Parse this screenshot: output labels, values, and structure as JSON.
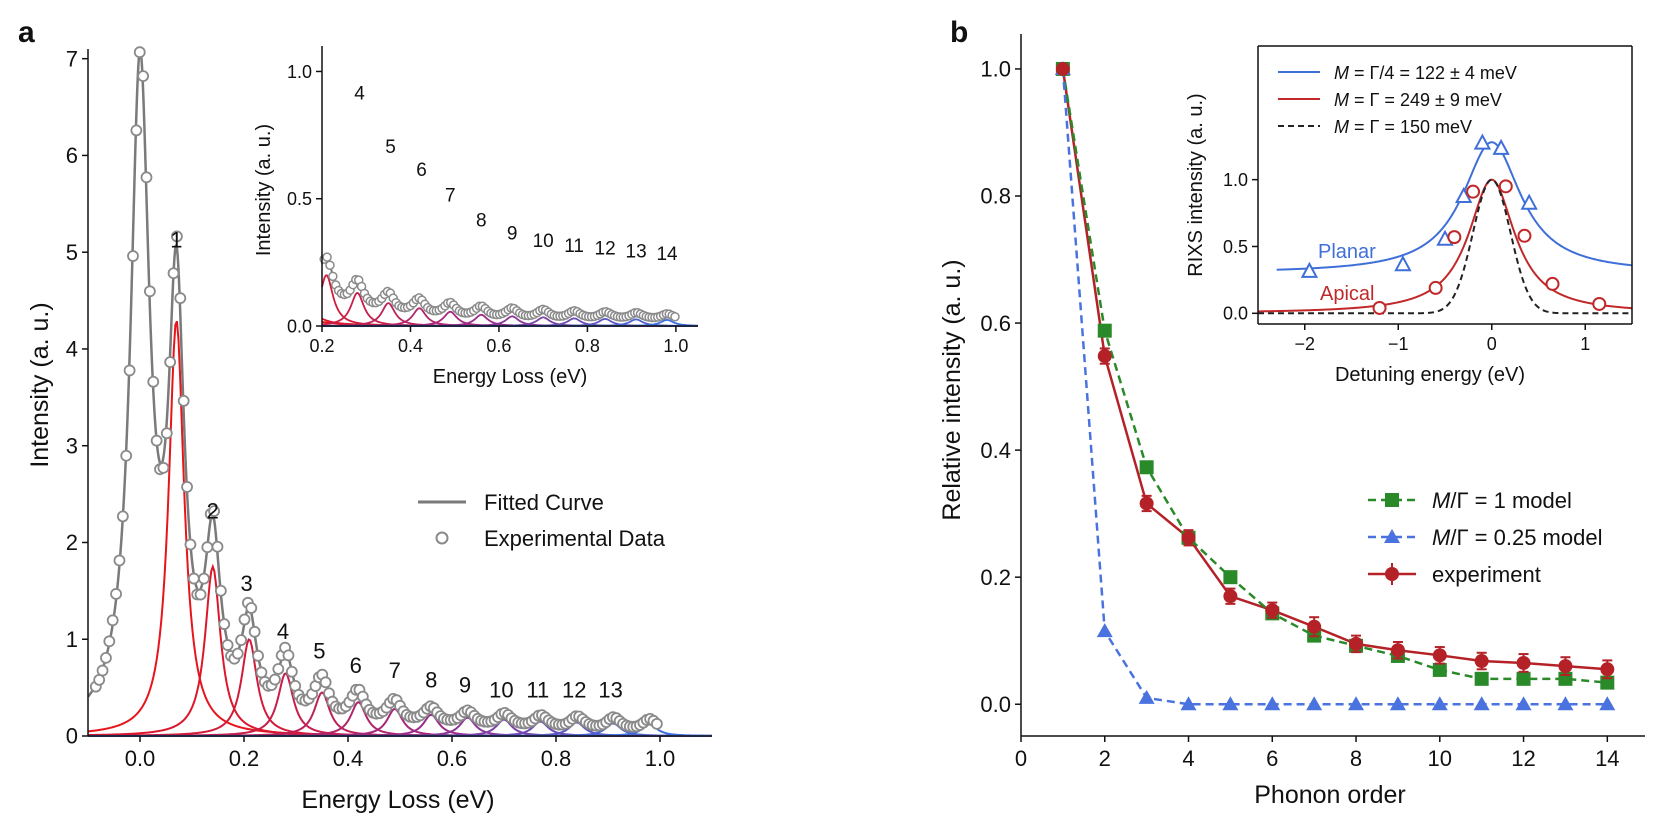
{
  "colors": {
    "red": "#e8141b",
    "gray": "#7a7a7a",
    "green": "#2a8a2a",
    "blue": "#4a73e0",
    "darkred": "#b42228",
    "planar": "#3f6fd8",
    "apical": "#c0282a",
    "black": "#222222"
  },
  "panel_a": {
    "label": "a",
    "legend": {
      "fitted": "Fitted Curve",
      "experimental": "Experimental Data"
    },
    "inset": {
      "ylabel": "Intensity (a. u.)",
      "xlabel": "Energy Loss (eV)"
    }
  },
  "panel_b": {
    "label": "b",
    "legend": {
      "green": {
        "italic": "M",
        "rest": "/Γ = 1 model"
      },
      "blue": {
        "italic": "M",
        "rest": "/Γ = 0.25 model"
      },
      "exp": "experiment"
    },
    "inset": {
      "ylabel": "RIXS intensity (a. u.)",
      "xlabel": "Detuning energy (eV)",
      "legend": [
        {
          "italic": "M",
          "rest": " = Γ/4 = 122 ± 4 meV"
        },
        {
          "italic": "M",
          "rest": " = Γ = 249 ± 9 meV"
        },
        {
          "italic": "M",
          "rest": " = Γ = 150 meV"
        }
      ],
      "planar_label": "Planar",
      "apical_label": "Apical"
    }
  },
  "chart_data": [
    {
      "id": "panel-a-main",
      "type": "line",
      "title": "",
      "xlabel": "Energy Loss (eV)",
      "ylabel": "Intensity (a. u.)",
      "xlim": [
        -0.1,
        1.1
      ],
      "ylim": [
        0,
        7.1
      ],
      "xticks": [
        0.0,
        0.2,
        0.4,
        0.6,
        0.8,
        1.0
      ],
      "xtick_labels": [
        "0.0",
        "0.2",
        "0.4",
        "0.6",
        "0.8",
        "1.0"
      ],
      "yticks": [
        0,
        1,
        2,
        3,
        4,
        5,
        6,
        7
      ],
      "ytick_labels": [
        "0",
        "1",
        "2",
        "3",
        "4",
        "5",
        "6",
        "7"
      ],
      "elastic_peak": {
        "center": 0.0,
        "height": 6.75,
        "width": 0.022
      },
      "phonon_peaks": {
        "centers": [
          0.07,
          0.14,
          0.21,
          0.28,
          0.35,
          0.42,
          0.49,
          0.56,
          0.63,
          0.7,
          0.77,
          0.84,
          0.91,
          0.98
        ],
        "heights": [
          4.3,
          1.75,
          1.0,
          0.65,
          0.45,
          0.35,
          0.28,
          0.22,
          0.19,
          0.17,
          0.15,
          0.14,
          0.13,
          0.12
        ],
        "width": 0.018
      },
      "peak_labels": [
        "1",
        "2",
        "3",
        "4",
        "5",
        "6",
        "7",
        "8",
        "9",
        "10",
        "11",
        "12",
        "13"
      ],
      "peak_label_x": [
        0.07,
        0.14,
        0.205,
        0.275,
        0.345,
        0.415,
        0.49,
        0.56,
        0.625,
        0.695,
        0.765,
        0.835,
        0.905
      ],
      "peak_label_y": [
        5.05,
        2.25,
        1.5,
        1.0,
        0.8,
        0.65,
        0.6,
        0.5,
        0.45,
        0.4,
        0.4,
        0.4,
        0.4
      ],
      "legend": [
        "Fitted Curve",
        "Experimental Data"
      ]
    },
    {
      "id": "panel-a-inset",
      "type": "line",
      "xlabel": "Energy Loss (eV)",
      "ylabel": "Intensity (a. u.)",
      "xlim": [
        0.2,
        1.05
      ],
      "ylim": [
        0,
        1.1
      ],
      "xticks": [
        0.2,
        0.4,
        0.6,
        0.8,
        1.0
      ],
      "xtick_labels": [
        "0.2",
        "0.4",
        "0.6",
        "0.8",
        "1.0"
      ],
      "yticks": [
        0.0,
        0.5,
        1.0
      ],
      "ytick_labels": [
        "0.0",
        "0.5",
        "1.0"
      ],
      "peak_labels": [
        "4",
        "5",
        "6",
        "7",
        "8",
        "9",
        "10",
        "11",
        "12",
        "13",
        "14"
      ],
      "peak_label_x": [
        0.285,
        0.355,
        0.425,
        0.49,
        0.56,
        0.63,
        0.7,
        0.77,
        0.84,
        0.91,
        0.98
      ],
      "peak_label_y": [
        0.89,
        0.68,
        0.59,
        0.49,
        0.39,
        0.34,
        0.31,
        0.29,
        0.28,
        0.27,
        0.26
      ]
    },
    {
      "id": "panel-b-main",
      "type": "line",
      "xlabel": "Phonon order",
      "ylabel": "Relative intensity (a. u.)",
      "xlim": [
        0,
        14.9
      ],
      "ylim": [
        -0.05,
        1.055
      ],
      "xticks": [
        0,
        2,
        4,
        6,
        8,
        10,
        12,
        14
      ],
      "xtick_labels": [
        "0",
        "2",
        "4",
        "6",
        "8",
        "10",
        "12",
        "14"
      ],
      "yticks": [
        0.0,
        0.2,
        0.4,
        0.6,
        0.8,
        1.0
      ],
      "ytick_labels": [
        "0.0",
        "0.2",
        "0.4",
        "0.6",
        "0.8",
        "1.0"
      ],
      "x": [
        1,
        2,
        3,
        4,
        5,
        6,
        7,
        8,
        9,
        10,
        11,
        12,
        13,
        14
      ],
      "series": [
        {
          "name": "M/Γ = 1 model",
          "values": [
            1.0,
            0.588,
            0.373,
            0.262,
            0.2,
            0.143,
            0.108,
            0.092,
            0.076,
            0.054,
            0.04,
            0.04,
            0.04,
            0.034
          ]
        },
        {
          "name": "M/Γ = 0.25 model",
          "values": [
            1.0,
            0.115,
            0.01,
            0.0,
            0.0,
            0.0,
            0.0,
            0.0,
            0.0,
            0.0,
            0.0,
            0.0,
            0.0,
            0.0
          ]
        },
        {
          "name": "experiment",
          "values": [
            1.0,
            0.548,
            0.316,
            0.262,
            0.17,
            0.148,
            0.122,
            0.095,
            0.085,
            0.077,
            0.068,
            0.065,
            0.06,
            0.055
          ],
          "errors": [
            0.0,
            0.012,
            0.012,
            0.012,
            0.012,
            0.012,
            0.015,
            0.013,
            0.013,
            0.013,
            0.013,
            0.014,
            0.014,
            0.014
          ]
        }
      ]
    },
    {
      "id": "panel-b-inset",
      "type": "line",
      "xlabel": "Detuning energy (eV)",
      "ylabel": "RIXS intensity (a. u.)",
      "xlim": [
        -2.5,
        1.5
      ],
      "ylim": [
        -0.08,
        2.0
      ],
      "xticks": [
        -2,
        -1,
        0,
        1
      ],
      "xtick_labels": [
        "−2",
        "−1",
        "0",
        "1"
      ],
      "yticks": [
        0.0,
        0.5,
        1.0
      ],
      "ytick_labels": [
        "0.0",
        "0.5",
        "1.0"
      ],
      "planar_points": {
        "x": [
          -1.95,
          -0.95,
          -0.5,
          -0.3,
          -0.1,
          0.1,
          0.4
        ],
        "y": [
          0.31,
          0.36,
          0.55,
          0.87,
          1.27,
          1.23,
          0.82
        ]
      },
      "apical_points": {
        "x": [
          -1.2,
          -0.6,
          -0.4,
          -0.2,
          0.15,
          0.35,
          0.65,
          1.15
        ],
        "y": [
          0.04,
          0.19,
          0.57,
          0.91,
          0.95,
          0.58,
          0.22,
          0.07
        ]
      },
      "planar_fit": {
        "baseline": 0.3,
        "amplitude": 0.98,
        "center": 0.0,
        "width": 0.38
      },
      "apical_fit": {
        "baseline": 0.0,
        "amplitude": 1.0,
        "center": 0.0,
        "width": 0.3
      },
      "black_fit": {
        "baseline": 0.0,
        "amplitude": 1.0,
        "center": 0.0,
        "width": 0.2
      }
    }
  ]
}
